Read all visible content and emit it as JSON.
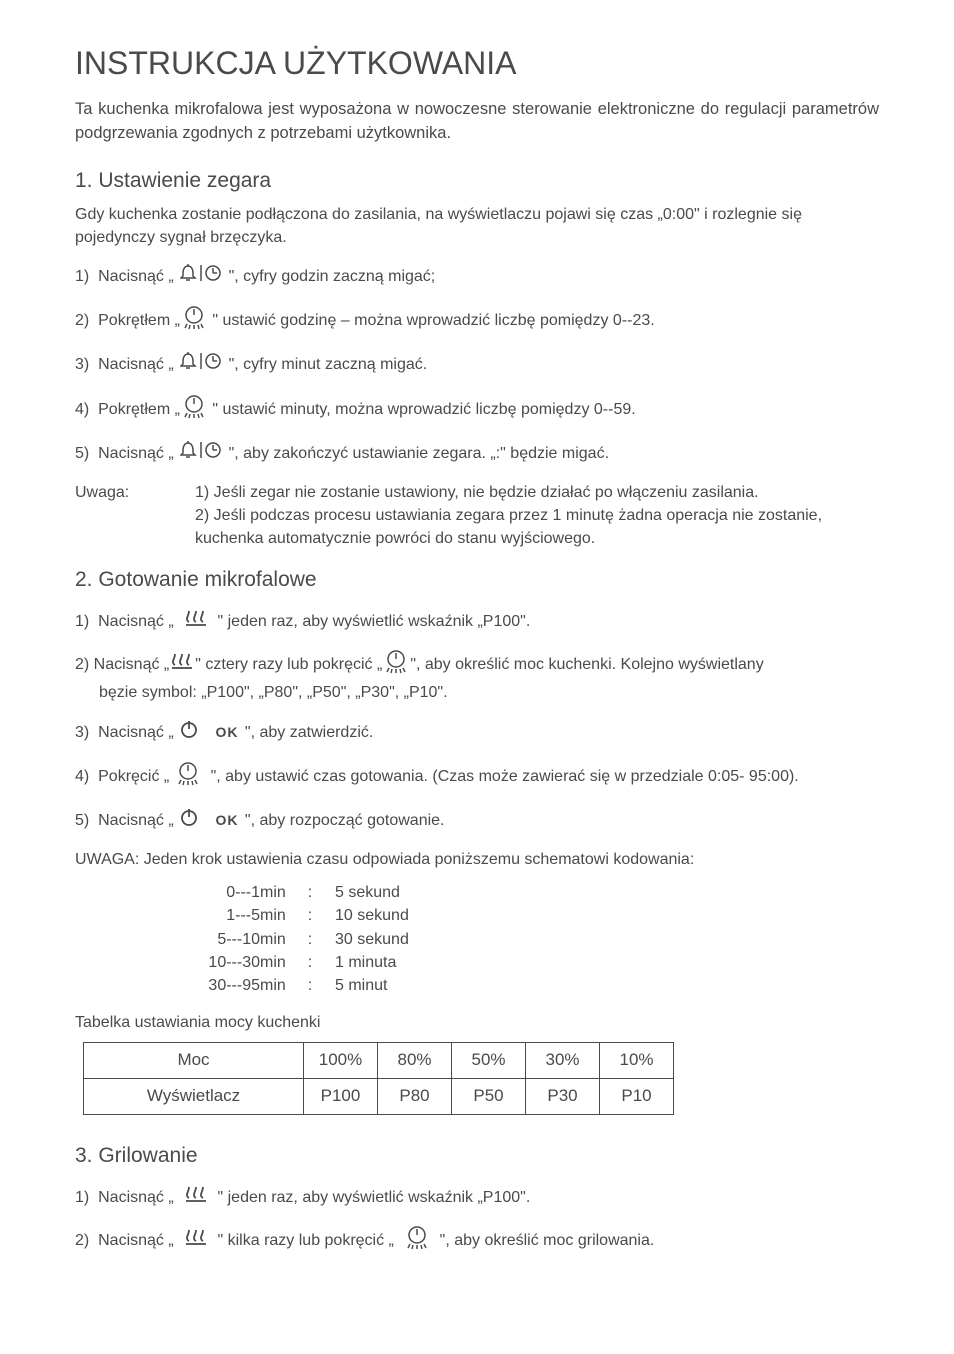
{
  "title": "INSTRUKCJA UŻYTKOWANIA",
  "intro": "Ta kuchenka mikrofalowa jest wyposażona w nowoczesne sterowanie elektroniczne do regulacji parametrów podgrzewania zgodnych z potrzebami użytkownika.",
  "s1": {
    "heading": "1. Ustawienie zegara",
    "intro": "Gdy kuchenka zostanie podłączona do zasilania, na wyświetlaczu pojawi się czas „0:00\" i rozlegnie się pojedynczy sygnał brzęczyka.",
    "step1a": "1)  Nacisnąć „ ",
    "step1b": " \", cyfry godzin zaczną migać;",
    "step2a": "2)  Pokrętłem „",
    "step2b": " \" ustawić godzinę – można wprowadzić liczbę pomiędzy 0--23.",
    "step3a": "3)  Nacisnąć „ ",
    "step3b": " \", cyfry minut zaczną migać.",
    "step4a": "4)  Pokrętłem „",
    "step4b": " \" ustawić minuty, można wprowadzić liczbę pomiędzy 0--59.",
    "step5a": "5)  Nacisnąć „ ",
    "step5b": " \", aby zakończyć ustawianie zegara. „:\" będzie migać.",
    "note_label": "Uwaga:",
    "note1": "1) Jeśli zegar nie zostanie ustawiony, nie będzie działać po włączeniu zasilania.",
    "note2": "2) Jeśli podczas procesu ustawiania zegara przez 1 minutę żadna operacja nie zostanie, kuchenka automatycznie powróci do stanu wyjściowego."
  },
  "s2": {
    "heading": "2. Gotowanie mikrofalowe",
    "step1a": "1)  Nacisnąć „  ",
    "step1b": "  \" jeden raz, aby wyświetlić wskaźnik „P100\".",
    "step2a": "2)  Nacisnąć „  ",
    "step2b": "  \" cztery razy lub pokręcić „  ",
    "step2c": "  \", aby określić moc kuchenki. Kolejno wyświetlany",
    "step2d": "bęzie symbol: „P100\", „P80\", „P50\", „P30\", „P10\".",
    "step3a": "3)  Nacisnąć „ ",
    "step3b": " \", aby zatwierdzić.",
    "step4a": "4)  Pokręcić „ ",
    "step4b": "  \", aby ustawić czas gotowania. (Czas może zawierać się w przedziale 0:05- 95:00).",
    "step5a": "5)  Nacisnąć „ ",
    "step5b": " \", aby rozpocząć gotowanie.",
    "schema_intro": "UWAGA: Jeden krok ustawienia czasu odpowiada poniższemu schematowi kodowania:",
    "rows": [
      {
        "a": "0---1",
        "b": "min",
        "c": ":",
        "d": "5 sekund"
      },
      {
        "a": "1---5",
        "b": "min",
        "c": ":",
        "d": "10 sekund"
      },
      {
        "a": "5---10",
        "b": "min",
        "c": ":",
        "d": "30 sekund"
      },
      {
        "a": "10---30",
        "b": "min",
        "c": ":",
        "d": "1 minuta"
      },
      {
        "a": "30---95",
        "b": "min",
        "c": ":",
        "d": "5 minut"
      }
    ],
    "table_caption": "Tabelka ustawiania mocy kuchenki",
    "table": {
      "row1_label": "Moc",
      "row2_label": "Wyświetlacz",
      "row1": [
        "100%",
        "80%",
        "50%",
        "30%",
        "10%"
      ],
      "row2": [
        "P100",
        "P80",
        "P50",
        "P30",
        "P10"
      ]
    }
  },
  "s3": {
    "heading": "3. Grilowanie",
    "step1a": "1)  Nacisnąć „  ",
    "step1b": "  \" jeden raz, aby wyświetlić wskaźnik „P100\".",
    "step2a": "2)  Nacisnąć „  ",
    "step2b": "  \" kilka razy lub pokręcić „  ",
    "step2c": "  \", aby określić moc grilowania."
  },
  "icons": {
    "ok": "OK"
  },
  "colors": {
    "text": "#4a4a4a",
    "border": "#4a4a4a",
    "background": "#ffffff"
  }
}
